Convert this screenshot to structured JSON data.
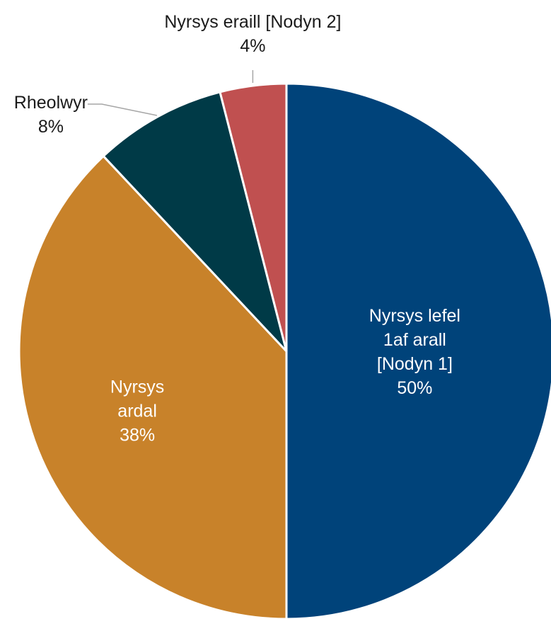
{
  "chart_data": {
    "type": "pie",
    "title": "",
    "start_angle_deg": 0,
    "direction": "clockwise",
    "slices": [
      {
        "lines": [
          "Nyrsys lefel",
          "1af arall",
          "[Nodyn 1]"
        ],
        "value": 50,
        "value_label": "50%",
        "color": "#00437a",
        "label_position": "inside"
      },
      {
        "lines": [
          "Nyrsys",
          "ardal"
        ],
        "value": 38,
        "value_label": "38%",
        "color": "#c8822a",
        "label_position": "inside"
      },
      {
        "lines": [
          "Rheolwyr"
        ],
        "value": 8,
        "value_label": "8%",
        "color": "#003a47",
        "label_position": "outside-left"
      },
      {
        "lines": [
          "Nyrsys eraill [Nodyn 2]"
        ],
        "value": 4,
        "value_label": "4%",
        "color": "#c05050",
        "label_position": "outside-top"
      }
    ]
  }
}
